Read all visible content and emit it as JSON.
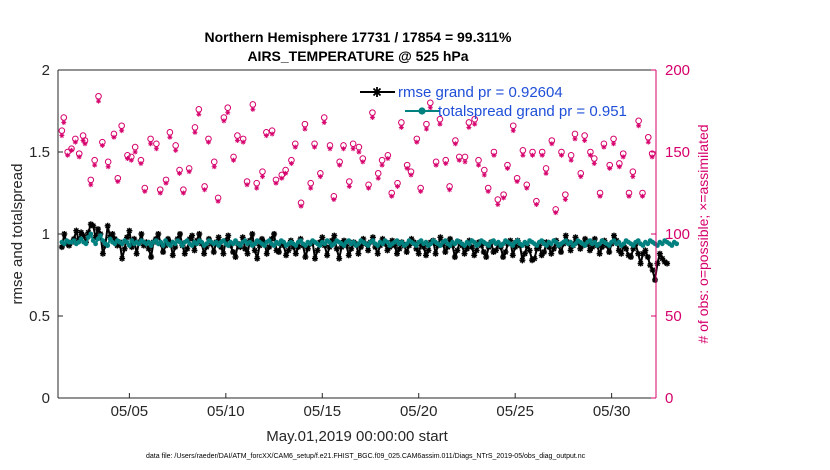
{
  "chart_data": {
    "type": "line",
    "title": "Northern Hemisphere 17731 / 17854 = 99.311%",
    "subtitle": "AIRS_TEMPERATURE @ 525 hPa",
    "xlabel": "May.01,2019 00:00:00 start",
    "ylabel": "rmse and totalspread",
    "ylabel_right": "# of obs: o=possible; ×=assimilated",
    "footer": "data file: /Users/raeder/DAI/ATM_forcXX/CAM6_setup/f.e21.FHIST_BGC.f09_025.CAM6assim.011/Diags_NTrS_2019-05/obs_diag_output.nc",
    "x_range_days": [
      0.8,
      31.8
    ],
    "ylim": [
      0,
      2
    ],
    "ylim_right": [
      0,
      200
    ],
    "x_ticks": [
      {
        "day": 4.5,
        "label": "05/05"
      },
      {
        "day": 9.5,
        "label": "05/10"
      },
      {
        "day": 14.5,
        "label": "05/15"
      },
      {
        "day": 19.5,
        "label": "05/20"
      },
      {
        "day": 24.5,
        "label": "05/25"
      },
      {
        "day": 29.5,
        "label": "05/30"
      }
    ],
    "y_ticks": [
      "0",
      "0.5",
      "1",
      "1.5",
      "2"
    ],
    "y_ticks_right": [
      "0",
      "50",
      "100",
      "150",
      "200"
    ],
    "legend_position": "top-right",
    "points_per_day": 8,
    "series": [
      {
        "name": "rmse grand pr = 0.92604",
        "color": "#000000",
        "marker": "star",
        "axis": "left",
        "values": [
          0.92,
          1.0,
          0.94,
          0.93,
          0.95,
          0.97,
          1.02,
          0.96,
          1.01,
          0.99,
          0.95,
          1.01,
          1.06,
          1.05,
          0.98,
          1.03,
          1.0,
          0.88,
          0.93,
          1.05,
          0.98,
          1.0,
          0.97,
          0.93,
          0.95,
          0.85,
          0.91,
          0.98,
          1.02,
          0.92,
          0.97,
          0.88,
          0.95,
          1.0,
          0.93,
          0.95,
          0.91,
          0.86,
          0.95,
          0.97,
          1.0,
          0.94,
          0.89,
          0.93,
          0.97,
          0.95,
          0.87,
          0.92,
          0.97,
          1.0,
          0.93,
          0.88,
          0.91,
          0.97,
          0.99,
          0.9,
          0.96,
          1.0,
          0.94,
          0.88,
          0.92,
          0.97,
          0.94,
          0.89,
          0.95,
          0.98,
          0.92,
          0.88,
          0.96,
          0.99,
          0.93,
          0.89,
          0.86,
          0.94,
          0.92,
          0.98,
          0.91,
          0.88,
          0.96,
          1.0,
          0.9,
          0.85,
          0.93,
          0.97,
          0.95,
          0.88,
          0.92,
          0.97,
          1.0,
          0.9,
          0.89,
          0.95,
          0.93,
          0.87,
          0.9,
          0.96,
          0.92,
          0.88,
          0.92,
          0.97,
          0.93,
          0.86,
          0.91,
          0.94,
          0.95,
          0.85,
          0.9,
          0.95,
          0.98,
          0.93,
          0.87,
          0.92,
          0.96,
          0.99,
          0.91,
          0.85,
          0.92,
          0.96,
          0.93,
          0.87,
          0.91,
          0.95,
          0.94,
          0.88,
          0.92,
          0.97,
          0.94,
          0.9,
          0.95,
          0.98,
          0.92,
          0.88,
          0.93,
          0.97,
          0.94,
          0.9,
          0.92,
          0.96,
          0.93,
          0.88,
          0.91,
          0.95,
          0.93,
          0.89,
          0.93,
          0.97,
          0.95,
          0.91,
          0.88,
          0.94,
          0.92,
          0.87,
          0.9,
          0.95,
          0.96,
          0.88,
          0.93,
          0.98,
          0.94,
          0.89,
          0.92,
          0.97,
          0.93,
          0.86,
          0.9,
          0.95,
          0.93,
          0.88,
          0.91,
          0.96,
          0.92,
          0.87,
          0.9,
          0.95,
          0.93,
          0.89,
          0.86,
          0.92,
          0.95,
          0.89,
          0.9,
          0.94,
          0.92,
          0.86,
          0.89,
          0.94,
          0.96,
          0.87,
          0.92,
          0.96,
          0.93,
          0.84,
          0.88,
          0.93,
          0.9,
          0.84,
          0.85,
          0.91,
          0.93,
          0.87,
          0.89,
          0.95,
          0.92,
          0.88,
          0.91,
          0.96,
          0.93,
          0.89,
          0.94,
          0.99,
          0.95,
          0.9,
          0.93,
          0.98,
          0.95,
          0.91,
          0.93,
          0.97,
          0.94,
          0.9,
          0.92,
          0.97,
          0.93,
          0.88,
          0.92,
          0.96,
          0.93,
          0.89,
          0.94,
          0.99,
          0.96,
          0.9,
          0.88,
          0.93,
          0.91,
          0.87,
          0.86,
          0.91,
          0.94,
          0.88,
          0.82,
          0.88,
          0.9,
          0.86,
          0.81,
          0.78,
          0.72,
          0.82,
          0.88,
          0.85,
          0.83,
          0.82
        ]
      },
      {
        "name": "totalspread grand pr = 0.951",
        "color": "#00807f",
        "marker": "dot",
        "axis": "left",
        "values": [
          0.95,
          0.94,
          0.96,
          0.95,
          0.95,
          0.96,
          0.94,
          0.95,
          0.97,
          0.95,
          0.94,
          0.98,
          1.0,
          0.96,
          0.94,
          0.97,
          0.99,
          0.96,
          0.94,
          0.93,
          0.97,
          0.95,
          0.94,
          0.96,
          0.95,
          0.94,
          0.96,
          0.95,
          0.93,
          0.96,
          0.94,
          0.95,
          0.94,
          0.96,
          0.95,
          0.94,
          0.95,
          0.93,
          0.95,
          0.96,
          0.94,
          0.95,
          0.93,
          0.96,
          0.94,
          0.93,
          0.95,
          0.94,
          0.96,
          0.95,
          0.93,
          0.95,
          0.96,
          0.94,
          0.93,
          0.95,
          0.94,
          0.96,
          0.95,
          0.93,
          0.94,
          0.96,
          0.95,
          0.94,
          0.95,
          0.93,
          0.95,
          0.96,
          0.94,
          0.93,
          0.95,
          0.94,
          0.96,
          0.94,
          0.93,
          0.95,
          0.96,
          0.94,
          0.95,
          0.93,
          0.94,
          0.96,
          0.95,
          0.94,
          0.93,
          0.95,
          0.96,
          0.94,
          0.93,
          0.95,
          0.94,
          0.96,
          0.95,
          0.93,
          0.94,
          0.95,
          0.94,
          0.93,
          0.95,
          0.96,
          0.94,
          0.93,
          0.95,
          0.94,
          0.96,
          0.95,
          0.94,
          0.93,
          0.95,
          0.94,
          0.96,
          0.95,
          0.93,
          0.94,
          0.96,
          0.95,
          0.94,
          0.93,
          0.95,
          0.96,
          0.94,
          0.95,
          0.93,
          0.94,
          0.96,
          0.95,
          0.94,
          0.93,
          0.95,
          0.96,
          0.94,
          0.93,
          0.95,
          0.94,
          0.96,
          0.95,
          0.93,
          0.94,
          0.95,
          0.96,
          0.94,
          0.95,
          0.93,
          0.94,
          0.96,
          0.95,
          0.94,
          0.93,
          0.95,
          0.96,
          0.94,
          0.95,
          0.93,
          0.94,
          0.96,
          0.95,
          0.94,
          0.93,
          0.95,
          0.96,
          0.94,
          0.93,
          0.95,
          0.94,
          0.96,
          0.95,
          0.94,
          0.93,
          0.95,
          0.94,
          0.96,
          0.95,
          0.93,
          0.94,
          0.96,
          0.95,
          0.94,
          0.93,
          0.95,
          0.96,
          0.94,
          0.95,
          0.93,
          0.94,
          0.96,
          0.95,
          0.94,
          0.93,
          0.95,
          0.96,
          0.94,
          0.93,
          0.95,
          0.94,
          0.96,
          0.95,
          0.94,
          0.93,
          0.95,
          0.96,
          0.94,
          0.93,
          0.95,
          0.94,
          0.96,
          0.95,
          0.93,
          0.94,
          0.95,
          0.96,
          0.94,
          0.95,
          0.93,
          0.94,
          0.96,
          0.95,
          0.94,
          0.93,
          0.95,
          0.96,
          0.94,
          0.95,
          0.93,
          0.94,
          0.96,
          0.95,
          0.94,
          0.93,
          0.95,
          0.96,
          0.94,
          0.95,
          0.93,
          0.94,
          0.96,
          0.95,
          0.94,
          0.93,
          0.95,
          0.96,
          0.94,
          0.93,
          0.95,
          0.94,
          0.96,
          0.95,
          0.94,
          0.93,
          0.95,
          0.94,
          0.96,
          0.95,
          0.94,
          0.93,
          0.95,
          0.94
        ]
      }
    ],
    "obs_series": [
      {
        "name": "possible",
        "marker": "circle",
        "color": "#d6006c",
        "axis": "right",
        "x_days": [
          1.0,
          1.1,
          1.3,
          1.5,
          1.7,
          1.9,
          2.1,
          2.2,
          2.5,
          2.7,
          2.9,
          3.1,
          3.4,
          3.7,
          3.9,
          4.1,
          4.4,
          4.6,
          4.8,
          5.1,
          5.3,
          5.6,
          5.9,
          6.1,
          6.4,
          6.6,
          6.9,
          7.1,
          7.3,
          7.6,
          7.9,
          8.1,
          8.4,
          8.6,
          8.9,
          9.1,
          9.4,
          9.6,
          9.9,
          10.1,
          10.4,
          10.6,
          10.9,
          11.1,
          11.4,
          11.6,
          11.9,
          12.1,
          12.4,
          12.6,
          12.9,
          13.1,
          13.4,
          13.6,
          13.9,
          14.1,
          14.4,
          14.6,
          14.9,
          15.1,
          15.4,
          15.6,
          15.9,
          16.1,
          16.4,
          16.6,
          16.9,
          17.1,
          17.4,
          17.6,
          17.9,
          18.1,
          18.4,
          18.6,
          18.9,
          19.1,
          19.4,
          19.6,
          19.9,
          20.1,
          20.4,
          20.6,
          20.9,
          21.1,
          21.4,
          21.6,
          21.9,
          22.1,
          22.4,
          22.6,
          22.9,
          23.1,
          23.4,
          23.6,
          23.9,
          24.1,
          24.4,
          24.6,
          24.9,
          25.1,
          25.4,
          25.6,
          25.9,
          26.1,
          26.4,
          26.6,
          26.9,
          27.1,
          27.4,
          27.6,
          27.9,
          28.1,
          28.4,
          28.6,
          28.9,
          29.1,
          29.4,
          29.6,
          29.9,
          30.1,
          30.4,
          30.6,
          30.9,
          31.1,
          31.4,
          31.6
        ],
        "values": [
          163,
          171,
          150,
          152,
          158,
          149,
          160,
          157,
          133,
          145,
          184,
          156,
          144,
          161,
          134,
          166,
          148,
          147,
          153,
          145,
          128,
          158,
          155,
          127,
          133,
          162,
          154,
          139,
          127,
          140,
          165,
          176,
          129,
          158,
          144,
          122,
          171,
          177,
          147,
          160,
          158,
          132,
          179,
          131,
          138,
          162,
          163,
          133,
          136,
          139,
          145,
          155,
          119,
          167,
          131,
          155,
          137,
          171,
          154,
          123,
          144,
          154,
          132,
          155,
          153,
          146,
          130,
          174,
          137,
          145,
          148,
          125,
          131,
          168,
          142,
          138,
          158,
          128,
          167,
          180,
          144,
          170,
          145,
          129,
          157,
          147,
          147,
          168,
          170,
          145,
          139,
          128,
          150,
          121,
          124,
          142,
          166,
          134,
          151,
          130,
          150,
          120,
          150,
          140,
          157,
          115,
          150,
          124,
          148,
          161,
          137,
          160,
          150,
          146,
          125,
          155,
          142,
          158,
          143,
          149,
          125,
          138,
          169,
          125,
          159,
          149
        ]
      },
      {
        "name": "assimilated",
        "marker": "star",
        "color": "#d6006c",
        "axis": "right",
        "x_days": [
          1.0,
          1.1,
          1.3,
          1.5,
          1.7,
          1.9,
          2.1,
          2.2,
          2.5,
          2.7,
          2.9,
          3.1,
          3.4,
          3.7,
          3.9,
          4.1,
          4.4,
          4.6,
          4.8,
          5.1,
          5.3,
          5.6,
          5.9,
          6.1,
          6.4,
          6.6,
          6.9,
          7.1,
          7.3,
          7.6,
          7.9,
          8.1,
          8.4,
          8.6,
          8.9,
          9.1,
          9.4,
          9.6,
          9.9,
          10.1,
          10.4,
          10.6,
          10.9,
          11.1,
          11.4,
          11.6,
          11.9,
          12.1,
          12.4,
          12.6,
          12.9,
          13.1,
          13.4,
          13.6,
          13.9,
          14.1,
          14.4,
          14.6,
          14.9,
          15.1,
          15.4,
          15.6,
          15.9,
          16.1,
          16.4,
          16.6,
          16.9,
          17.1,
          17.4,
          17.6,
          17.9,
          18.1,
          18.4,
          18.6,
          18.9,
          19.1,
          19.4,
          19.6,
          19.9,
          20.1,
          20.4,
          20.6,
          20.9,
          21.1,
          21.4,
          21.6,
          21.9,
          22.1,
          22.4,
          22.6,
          22.9,
          23.1,
          23.4,
          23.6,
          23.9,
          24.1,
          24.4,
          24.6,
          24.9,
          25.1,
          25.4,
          25.6,
          25.9,
          26.1,
          26.4,
          26.6,
          26.9,
          27.1,
          27.4,
          27.6,
          27.9,
          28.1,
          28.4,
          28.6,
          28.9,
          29.1,
          29.4,
          29.6,
          29.9,
          30.1,
          30.4,
          30.6,
          30.9,
          31.1,
          31.4,
          31.6
        ],
        "values": [
          160,
          168,
          148,
          151,
          156,
          147,
          157,
          155,
          130,
          142,
          181,
          154,
          141,
          159,
          132,
          163,
          146,
          145,
          150,
          143,
          126,
          155,
          152,
          125,
          131,
          159,
          151,
          137,
          125,
          138,
          162,
          173,
          127,
          156,
          141,
          120,
          169,
          174,
          145,
          157,
          156,
          130,
          176,
          128,
          135,
          160,
          161,
          131,
          134,
          137,
          143,
          153,
          117,
          164,
          128,
          153,
          135,
          168,
          152,
          121,
          142,
          152,
          129,
          152,
          150,
          144,
          128,
          171,
          134,
          142,
          146,
          123,
          129,
          165,
          140,
          136,
          156,
          126,
          164,
          177,
          142,
          167,
          143,
          127,
          155,
          145,
          144,
          165,
          167,
          142,
          136,
          126,
          148,
          118,
          122,
          140,
          163,
          132,
          148,
          128,
          148,
          118,
          148,
          137,
          155,
          113,
          148,
          121,
          145,
          158,
          135,
          157,
          148,
          143,
          123,
          153,
          140,
          155,
          141,
          147,
          123,
          135,
          166,
          123,
          156,
          147
        ]
      }
    ]
  }
}
